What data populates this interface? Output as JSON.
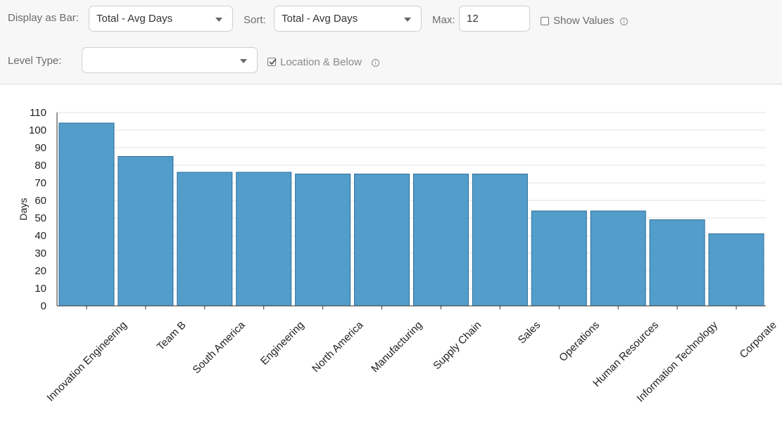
{
  "controls": {
    "display_as_bar": {
      "label": "Display as Bar:",
      "value": "Total - Avg Days"
    },
    "sort": {
      "label": "Sort:",
      "value": "Total - Avg Days"
    },
    "max": {
      "label": "Max:",
      "value": "12"
    },
    "show_values": {
      "label": "Show Values",
      "checked": false,
      "info_glyph": "i"
    },
    "level_type": {
      "label": "Level Type:",
      "value": ""
    },
    "location_below": {
      "label": "Location & Below",
      "checked": true,
      "info_glyph": "i"
    }
  },
  "colors": {
    "bar": "#539dcb",
    "bar_stroke": "#2f6f99",
    "grid": "#e3e3e3",
    "axis": "#333333"
  },
  "chart_data": {
    "type": "bar",
    "categories": [
      "Innovation Engineering",
      "Team B",
      "South America",
      "Engineering",
      "North America",
      "Manufacturing",
      "Supply Chain",
      "Sales",
      "Operations",
      "Human Resources",
      "Information Technology",
      "Corporate"
    ],
    "values": [
      104,
      85,
      76,
      76,
      75,
      75,
      75,
      75,
      54,
      54,
      49,
      41
    ],
    "ylabel": "Days",
    "xlabel": "",
    "ylim": [
      0,
      110
    ],
    "yticks": [
      0,
      10,
      20,
      30,
      40,
      50,
      60,
      70,
      80,
      90,
      100,
      110
    ],
    "grid": true,
    "legend": "none"
  }
}
